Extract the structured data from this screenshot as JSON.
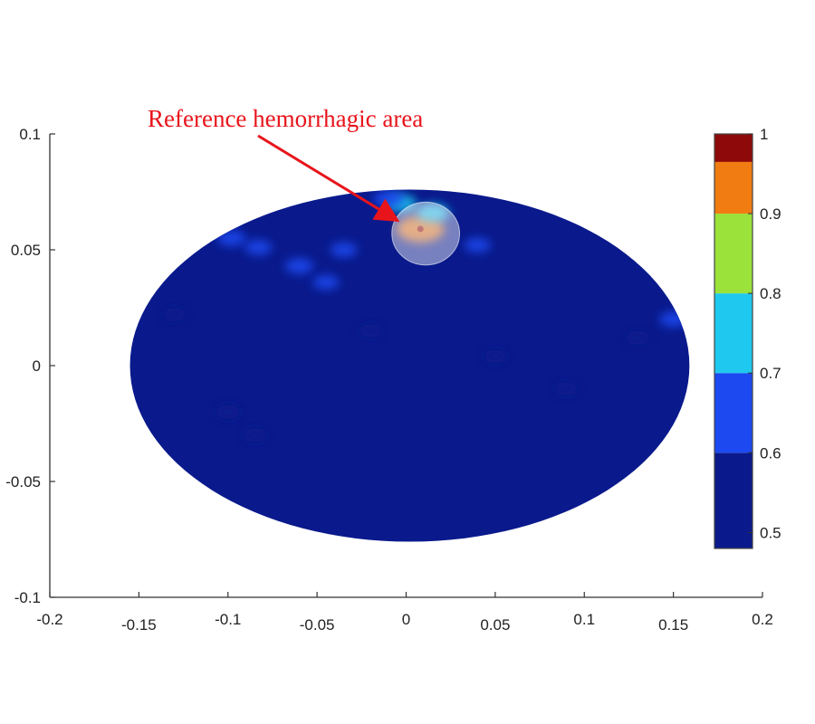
{
  "chart_data": {
    "type": "heatmap",
    "title": "",
    "xlabel": "",
    "ylabel": "",
    "xlim": [
      -0.2,
      0.2
    ],
    "ylim": [
      -0.1,
      0.1
    ],
    "x_ticks": [
      -0.2,
      -0.15,
      -0.1,
      -0.05,
      0,
      0.05,
      0.1,
      0.15,
      0.2
    ],
    "x_tick_labels": [
      "-0.2",
      "-0.15",
      "-0.1",
      "-0.05",
      "0",
      "0.05",
      "0.1",
      "0.15",
      "0.2"
    ],
    "y_ticks": [
      0.1,
      0.05,
      0,
      -0.05,
      -0.1
    ],
    "y_tick_labels": [
      "0.1",
      "0.05",
      "0",
      "-0.05",
      "-0.1"
    ],
    "imaging_region": {
      "shape": "ellipse",
      "center": [
        0.002,
        0.0
      ],
      "semi_axes": [
        0.157,
        0.076
      ]
    },
    "colorbar": {
      "range": [
        0.48,
        1.0
      ],
      "ticks": [
        1,
        0.9,
        0.8,
        0.7,
        0.6,
        0.5
      ],
      "tick_labels": [
        "1",
        "0.9",
        "0.8",
        "0.7",
        "0.6",
        "0.5"
      ],
      "bands": [
        {
          "from": 0.48,
          "to": 0.6,
          "color": "#0a1a8c"
        },
        {
          "from": 0.6,
          "to": 0.7,
          "color": "#1c49f0"
        },
        {
          "from": 0.7,
          "to": 0.8,
          "color": "#1ec8ee"
        },
        {
          "from": 0.8,
          "to": 0.9,
          "color": "#9be23a"
        },
        {
          "from": 0.9,
          "to": 1.0,
          "color": "#f07c12"
        }
      ],
      "top_color": "#8e0a0a"
    },
    "hotspots": [
      {
        "x": 0.008,
        "y": 0.059,
        "value": 0.97
      },
      {
        "x": 0.015,
        "y": 0.066,
        "value": 0.72
      },
      {
        "x": -0.003,
        "y": 0.07,
        "value": 0.7
      },
      {
        "x": -0.01,
        "y": 0.072,
        "value": 0.68
      },
      {
        "x": -0.098,
        "y": 0.055,
        "value": 0.65
      },
      {
        "x": -0.083,
        "y": 0.051,
        "value": 0.62
      },
      {
        "x": -0.06,
        "y": 0.043,
        "value": 0.64
      },
      {
        "x": -0.035,
        "y": 0.05,
        "value": 0.61
      },
      {
        "x": -0.045,
        "y": 0.036,
        "value": 0.6
      },
      {
        "x": 0.04,
        "y": 0.052,
        "value": 0.6
      },
      {
        "x": 0.15,
        "y": 0.02,
        "value": 0.63
      },
      {
        "x": 0.13,
        "y": 0.012,
        "value": 0.58
      },
      {
        "x": -0.1,
        "y": -0.02,
        "value": 0.58
      },
      {
        "x": -0.085,
        "y": -0.03,
        "value": 0.57
      },
      {
        "x": -0.13,
        "y": 0.022,
        "value": 0.56
      },
      {
        "x": 0.05,
        "y": 0.004,
        "value": 0.56
      },
      {
        "x": -0.02,
        "y": 0.015,
        "value": 0.55
      },
      {
        "x": 0.09,
        "y": -0.01,
        "value": 0.55
      }
    ],
    "annotations": [
      {
        "text": "Reference hemorrhagic area",
        "target": [
          0.008,
          0.059
        ],
        "marker": {
          "shape": "circle",
          "center": [
            0.011,
            0.057
          ],
          "radius_x": 0.019
        },
        "color": "#e8141b"
      }
    ]
  }
}
